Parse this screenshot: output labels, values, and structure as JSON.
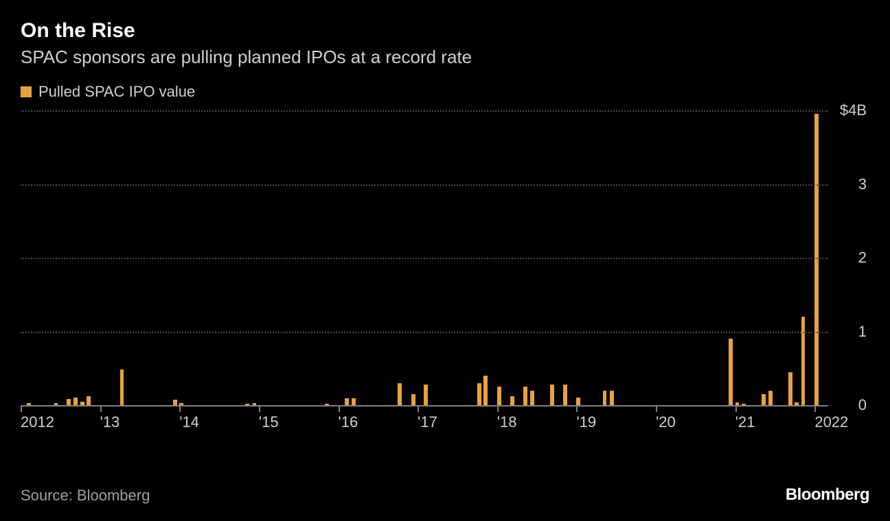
{
  "title": "On the Rise",
  "subtitle": "SPAC sponsors are pulling planned IPOs at a record rate",
  "legend": {
    "label": "Pulled SPAC IPO value",
    "color": "#e8a33d"
  },
  "chart": {
    "type": "bar",
    "background_color": "#000000",
    "bar_color": "#e8a33d",
    "grid_color": "#4a4a4a",
    "baseline_color": "#808080",
    "text_color": "#d0d0d0",
    "ylim": [
      0,
      4
    ],
    "ytick_step": 1,
    "ytick_labels": [
      "0",
      "1",
      "2",
      "3",
      "$4B"
    ],
    "x_year_start": 2012,
    "x_year_end": 2022.17,
    "x_tick_years": [
      2012,
      2013,
      2014,
      2015,
      2016,
      2017,
      2018,
      2019,
      2020,
      2021,
      2022
    ],
    "x_tick_labels": [
      "2012",
      "'13",
      "'14",
      "'15",
      "'16",
      "'17",
      "'18",
      "'19",
      "'20",
      "'21",
      "2022"
    ],
    "bar_width_months": 0.6,
    "bars": [
      {
        "x": 2012.08,
        "v": 0.03
      },
      {
        "x": 2012.42,
        "v": 0.03
      },
      {
        "x": 2012.58,
        "v": 0.08
      },
      {
        "x": 2012.67,
        "v": 0.1
      },
      {
        "x": 2012.75,
        "v": 0.05
      },
      {
        "x": 2012.83,
        "v": 0.12
      },
      {
        "x": 2013.25,
        "v": 0.48
      },
      {
        "x": 2013.92,
        "v": 0.07
      },
      {
        "x": 2014.0,
        "v": 0.03
      },
      {
        "x": 2014.83,
        "v": 0.02
      },
      {
        "x": 2014.92,
        "v": 0.03
      },
      {
        "x": 2015.83,
        "v": 0.02
      },
      {
        "x": 2016.08,
        "v": 0.09
      },
      {
        "x": 2016.17,
        "v": 0.09
      },
      {
        "x": 2016.75,
        "v": 0.3
      },
      {
        "x": 2016.92,
        "v": 0.15
      },
      {
        "x": 2017.08,
        "v": 0.28
      },
      {
        "x": 2017.75,
        "v": 0.3
      },
      {
        "x": 2017.83,
        "v": 0.4
      },
      {
        "x": 2018.0,
        "v": 0.25
      },
      {
        "x": 2018.17,
        "v": 0.12
      },
      {
        "x": 2018.33,
        "v": 0.25
      },
      {
        "x": 2018.42,
        "v": 0.2
      },
      {
        "x": 2018.67,
        "v": 0.28
      },
      {
        "x": 2018.83,
        "v": 0.28
      },
      {
        "x": 2019.0,
        "v": 0.1
      },
      {
        "x": 2019.33,
        "v": 0.2
      },
      {
        "x": 2019.42,
        "v": 0.2
      },
      {
        "x": 2020.92,
        "v": 0.9
      },
      {
        "x": 2021.0,
        "v": 0.04
      },
      {
        "x": 2021.08,
        "v": 0.02
      },
      {
        "x": 2021.33,
        "v": 0.15
      },
      {
        "x": 2021.42,
        "v": 0.2
      },
      {
        "x": 2021.67,
        "v": 0.45
      },
      {
        "x": 2021.75,
        "v": 0.04
      },
      {
        "x": 2021.83,
        "v": 1.2
      },
      {
        "x": 2022.0,
        "v": 3.95
      }
    ]
  },
  "source": "Source: Bloomberg",
  "brand": "Bloomberg"
}
